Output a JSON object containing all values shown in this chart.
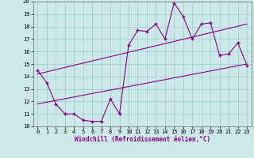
{
  "xlabel": "Windchill (Refroidissement éolien,°C)",
  "bg_color": "#cce8e8",
  "line_color": "#880088",
  "grid_color": "#99cccc",
  "xlim": [
    -0.5,
    23.5
  ],
  "ylim": [
    10,
    20
  ],
  "xticks": [
    0,
    1,
    2,
    3,
    4,
    5,
    6,
    7,
    8,
    9,
    10,
    11,
    12,
    13,
    14,
    15,
    16,
    17,
    18,
    19,
    20,
    21,
    22,
    23
  ],
  "yticks": [
    10,
    11,
    12,
    13,
    14,
    15,
    16,
    17,
    18,
    19,
    20
  ],
  "line1_x": [
    0,
    1,
    2,
    3,
    4,
    5,
    6,
    7,
    8,
    9,
    10,
    11,
    12,
    13,
    14,
    15,
    16,
    17,
    18,
    19,
    20,
    21,
    22,
    23
  ],
  "line1_y": [
    14.5,
    13.5,
    11.8,
    11.0,
    11.0,
    10.5,
    10.4,
    10.4,
    12.2,
    11.0,
    16.5,
    17.7,
    17.6,
    18.2,
    17.0,
    19.9,
    18.8,
    17.0,
    18.2,
    18.3,
    15.7,
    15.8,
    16.7,
    14.9
  ],
  "line2_x": [
    0,
    23
  ],
  "line2_y": [
    14.2,
    18.2
  ],
  "line3_x": [
    0,
    23
  ],
  "line3_y": [
    11.8,
    15.0
  ],
  "markersize": 2.5,
  "linewidth": 0.8,
  "tick_fontsize": 5,
  "xlabel_fontsize": 5.5
}
